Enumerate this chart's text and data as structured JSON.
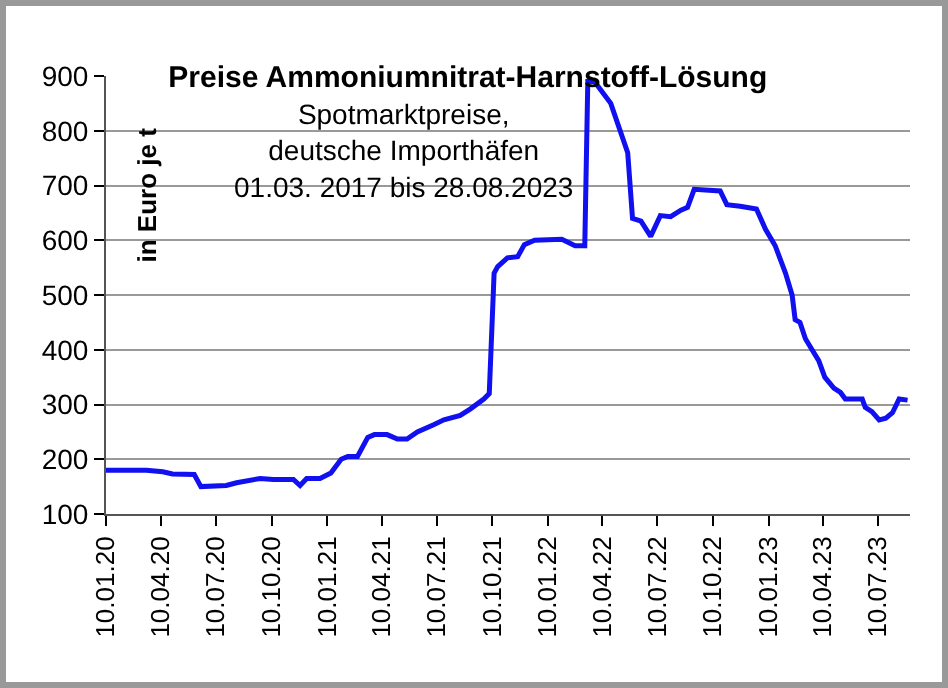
{
  "chart_data": {
    "type": "line",
    "title": "Preise Ammoniumnitrat-Harnstoff-Lösung",
    "ylabel": "in Euro je t",
    "annotations": [
      "Spotmarktpreise,\ndeutsche Importhäfen\n01.03. 2017 bis 28.08.2023"
    ],
    "x": [
      "2020-01-10",
      "2020-03-17",
      "2020-04-13",
      "2020-04-29",
      "2020-06-04",
      "2020-06-15",
      "2020-07-27",
      "2020-08-13",
      "2020-09-21",
      "2020-10-13",
      "2020-11-15",
      "2020-11-26",
      "2020-12-07",
      "2020-12-29",
      "2021-01-16",
      "2021-02-02",
      "2021-02-13",
      "2021-03-01",
      "2021-03-18",
      "2021-03-29",
      "2021-04-19",
      "2021-05-06",
      "2021-05-22",
      "2021-06-08",
      "2021-07-05",
      "2021-07-22",
      "2021-08-18",
      "2021-09-04",
      "2021-09-26",
      "2021-10-05",
      "2021-10-13",
      "2021-10-19",
      "2021-11-04",
      "2021-11-21",
      "2021-12-02",
      "2021-12-19",
      "2022-02-02",
      "2022-02-24",
      "2022-03-12",
      "2022-03-17",
      "2022-03-28",
      "2022-04-24",
      "2022-05-22",
      "2022-05-30",
      "2022-06-13",
      "2022-06-29",
      "2022-07-15",
      "2022-08-01",
      "2022-08-18",
      "2022-08-29",
      "2022-09-09",
      "2022-10-22",
      "2022-11-02",
      "2022-11-24",
      "2022-12-21",
      "2023-01-05",
      "2023-01-21",
      "2023-02-07",
      "2023-02-18",
      "2023-02-23",
      "2023-03-03",
      "2023-03-12",
      "2023-03-23",
      "2023-04-03",
      "2023-04-13",
      "2023-04-28",
      "2023-05-09",
      "2023-05-17",
      "2023-06-14",
      "2023-06-19",
      "2023-06-30",
      "2023-07-12",
      "2023-07-23",
      "2023-08-03",
      "2023-08-14",
      "2023-08-28"
    ],
    "series": [
      {
        "color": "#1010f0",
        "values": [
          180,
          180,
          177,
          173,
          172,
          150,
          152,
          157,
          165,
          163,
          163,
          152,
          165,
          165,
          175,
          200,
          205,
          205,
          240,
          245,
          245,
          237,
          237,
          250,
          263,
          272,
          280,
          292,
          310,
          320,
          540,
          552,
          568,
          570,
          592,
          600,
          602,
          590,
          590,
          890,
          890,
          850,
          760,
          640,
          635,
          607,
          645,
          643,
          655,
          660,
          693,
          690,
          665,
          662,
          657,
          620,
          590,
          540,
          500,
          455,
          450,
          420,
          400,
          380,
          350,
          330,
          322,
          310,
          310,
          295,
          287,
          272,
          275,
          285,
          310,
          308
        ]
      }
    ],
    "xlim": [
      "2020-01-10",
      "2023-09-01"
    ],
    "xticks": [
      {
        "value": "2020-01-10",
        "label": "10.01.20"
      },
      {
        "value": "2020-04-10",
        "label": "10.04.20"
      },
      {
        "value": "2020-07-10",
        "label": "10.07.20"
      },
      {
        "value": "2020-10-10",
        "label": "10.10.20"
      },
      {
        "value": "2021-01-10",
        "label": "10.01.21"
      },
      {
        "value": "2021-04-10",
        "label": "10.04.21"
      },
      {
        "value": "2021-07-10",
        "label": "10.07.21"
      },
      {
        "value": "2021-10-10",
        "label": "10.10.21"
      },
      {
        "value": "2022-01-10",
        "label": "10.01.22"
      },
      {
        "value": "2022-04-10",
        "label": "10.04.22"
      },
      {
        "value": "2022-07-10",
        "label": "10.07.22"
      },
      {
        "value": "2022-10-10",
        "label": "10.10.22"
      },
      {
        "value": "2023-01-10",
        "label": "10.01.23"
      },
      {
        "value": "2023-04-10",
        "label": "10.04.23"
      },
      {
        "value": "2023-07-10",
        "label": "10.07.23"
      }
    ],
    "ylim": [
      100,
      900
    ],
    "yticks": [
      100,
      200,
      300,
      400,
      500,
      600,
      700,
      800,
      900
    ],
    "grid": "y",
    "marker": "none",
    "line_style": "solid"
  }
}
